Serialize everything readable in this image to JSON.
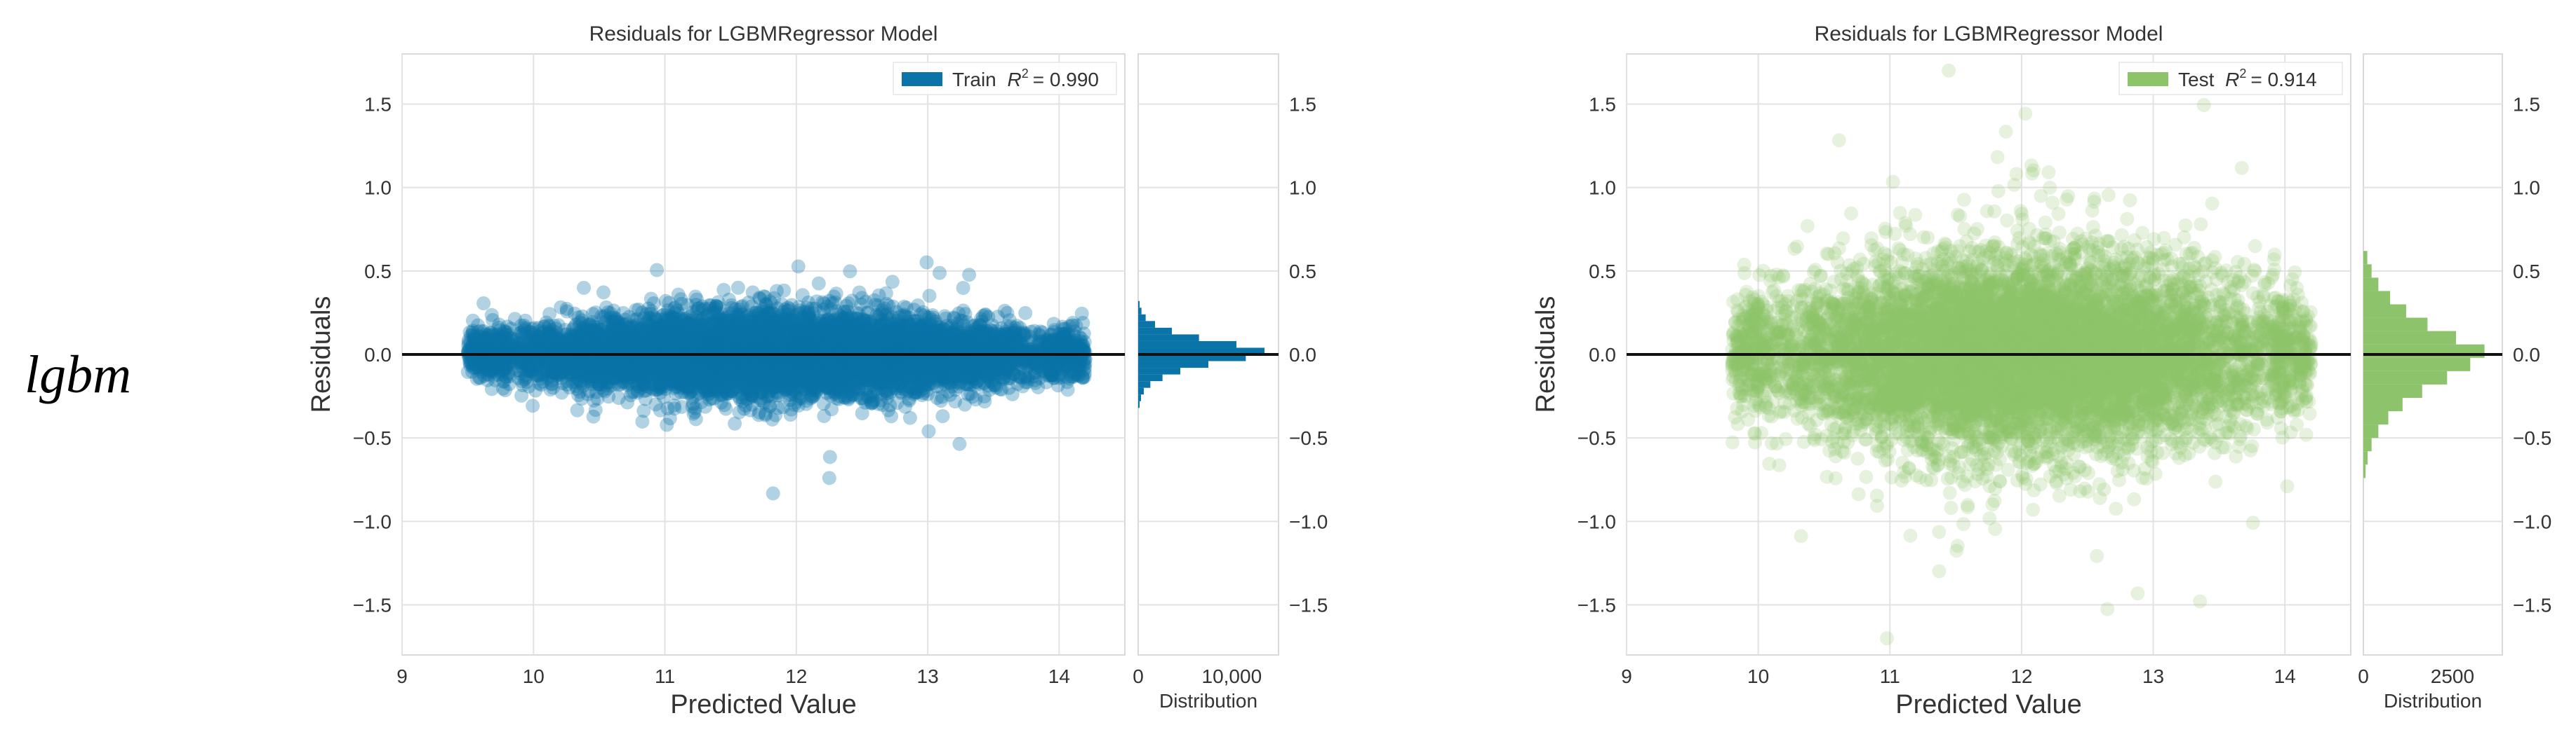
{
  "row_label": "lgbm",
  "colors": {
    "train": "#0a73a8",
    "test": "#8cc36b",
    "zero_line": "#111111",
    "grid": "#e2e2e2",
    "panel_bg": "#ffffff",
    "frame": "#d9d9d9"
  },
  "chart_data": [
    {
      "type": "scatter",
      "title": "Residuals for LGBMRegressor Model",
      "xlabel": "Predicted Value",
      "ylabel": "Residuals",
      "xlim": [
        9,
        14.5
      ],
      "ylim": [
        -1.8,
        1.8
      ],
      "x_ticks": [
        9,
        10,
        11,
        12,
        13,
        14
      ],
      "x_tick_labels": [
        "9",
        "10",
        "11",
        "12",
        "13",
        "14"
      ],
      "y_ticks": [
        -1.5,
        -1.0,
        -0.5,
        0.0,
        0.5,
        1.0,
        1.5
      ],
      "y_tick_labels": [
        "−1.5",
        "−1.0",
        "−0.5",
        "0.0",
        "0.5",
        "1.0",
        "1.5"
      ],
      "grid": true,
      "legend_placement": "top-right",
      "series": [
        {
          "label": "Train",
          "r2_prefix": "R",
          "r2_exp": "2",
          "r2_value": "= 0.990",
          "color": "train",
          "x_range": [
            9.5,
            14.2
          ],
          "residual_spread": 0.12,
          "point_count": 9000,
          "opacity": 0.32
        }
      ],
      "zero_line": 0.0,
      "distribution": {
        "label": "Distribution",
        "x_ticks": [
          0,
          10000
        ],
        "x_tick_labels": [
          "0",
          "10,000"
        ],
        "xlim": [
          0,
          15000
        ],
        "bins": [
          {
            "center": -0.3,
            "count": 150
          },
          {
            "center": -0.26,
            "count": 300
          },
          {
            "center": -0.22,
            "count": 600
          },
          {
            "center": -0.18,
            "count": 1300
          },
          {
            "center": -0.14,
            "count": 2600
          },
          {
            "center": -0.1,
            "count": 4500
          },
          {
            "center": -0.06,
            "count": 7500
          },
          {
            "center": -0.02,
            "count": 11500
          },
          {
            "center": 0.02,
            "count": 13500
          },
          {
            "center": 0.06,
            "count": 10500
          },
          {
            "center": 0.1,
            "count": 6500
          },
          {
            "center": 0.14,
            "count": 3600
          },
          {
            "center": 0.18,
            "count": 1800
          },
          {
            "center": 0.22,
            "count": 800
          },
          {
            "center": 0.26,
            "count": 350
          },
          {
            "center": 0.3,
            "count": 150
          }
        ],
        "bin_width": 0.04
      }
    },
    {
      "type": "scatter",
      "title": "Residuals for LGBMRegressor Model",
      "xlabel": "Predicted Value",
      "ylabel": "Residuals",
      "xlim": [
        9,
        14.5
      ],
      "ylim": [
        -1.8,
        1.8
      ],
      "x_ticks": [
        9,
        10,
        11,
        12,
        13,
        14
      ],
      "x_tick_labels": [
        "9",
        "10",
        "11",
        "12",
        "13",
        "14"
      ],
      "y_ticks": [
        -1.5,
        -1.0,
        -0.5,
        0.0,
        0.5,
        1.0,
        1.5
      ],
      "y_tick_labels": [
        "−1.5",
        "−1.0",
        "−0.5",
        "0.0",
        "0.5",
        "1.0",
        "1.5"
      ],
      "grid": true,
      "legend_placement": "top-right",
      "series": [
        {
          "label": "Test",
          "r2_prefix": "R",
          "r2_exp": "2",
          "r2_value": "= 0.914",
          "color": "test",
          "x_range": [
            9.8,
            14.2
          ],
          "residual_spread": 0.3,
          "point_count": 9000,
          "opacity": 0.22
        }
      ],
      "zero_line": 0.0,
      "distribution": {
        "label": "Distribution",
        "x_ticks": [
          0,
          2500
        ],
        "x_tick_labels": [
          "0",
          "2500"
        ],
        "xlim": [
          0,
          3900
        ],
        "bins": [
          {
            "center": -0.7,
            "count": 60
          },
          {
            "center": -0.62,
            "count": 120
          },
          {
            "center": -0.54,
            "count": 230
          },
          {
            "center": -0.46,
            "count": 420
          },
          {
            "center": -0.38,
            "count": 700
          },
          {
            "center": -0.3,
            "count": 1100
          },
          {
            "center": -0.22,
            "count": 1650
          },
          {
            "center": -0.14,
            "count": 2350
          },
          {
            "center": -0.06,
            "count": 3000
          },
          {
            "center": 0.02,
            "count": 3400
          },
          {
            "center": 0.1,
            "count": 2600
          },
          {
            "center": 0.18,
            "count": 1800
          },
          {
            "center": 0.26,
            "count": 1200
          },
          {
            "center": 0.34,
            "count": 750
          },
          {
            "center": 0.42,
            "count": 420
          },
          {
            "center": 0.5,
            "count": 230
          },
          {
            "center": 0.58,
            "count": 110
          }
        ],
        "bin_width": 0.08
      }
    }
  ]
}
